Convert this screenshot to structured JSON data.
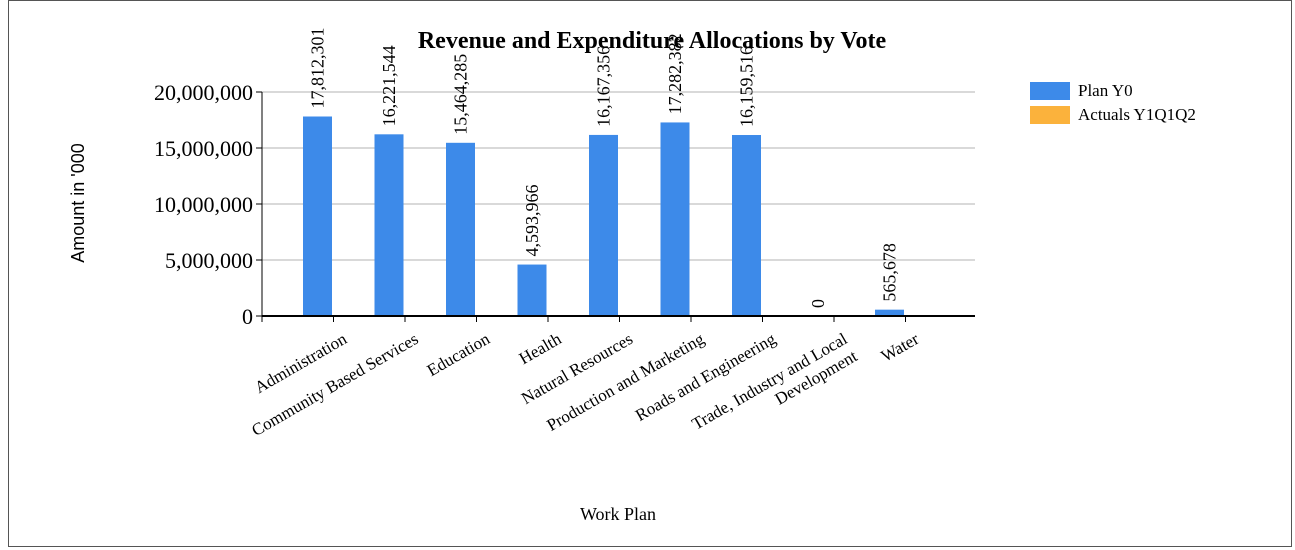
{
  "chart_data": {
    "type": "bar",
    "title": "Revenue and Expenditure Allocations by Vote",
    "xlabel": "Work Plan",
    "ylabel": "Amount in '000",
    "ylim": [
      0,
      20000000
    ],
    "yticks": [
      0,
      5000000,
      10000000,
      15000000,
      20000000
    ],
    "ytick_labels": [
      "0",
      "5,000,000",
      "10,000,000",
      "15,000,000",
      "20,000,000"
    ],
    "grid": true,
    "legend_position": "right",
    "categories": [
      "Administration",
      "Community Based Services",
      "Education",
      "Health",
      "Natural Resources",
      "Production and Marketing",
      "Roads and Engineering",
      "Trade, Industry and Local Development",
      "Water"
    ],
    "category_label_lines": [
      [
        "Administration"
      ],
      [
        "Community Based Services"
      ],
      [
        "Education"
      ],
      [
        "Health"
      ],
      [
        "Natural Resources"
      ],
      [
        "Production and Marketing"
      ],
      [
        "Roads and Engineering"
      ],
      [
        "Trade, Industry and Local",
        "Development"
      ],
      [
        "Water"
      ]
    ],
    "series": [
      {
        "name": "Plan Y0",
        "color": "#3d8ae9",
        "values": [
          17812301,
          16221544,
          15464285,
          4593966,
          16167356,
          17282382,
          16159516,
          0,
          565678
        ],
        "labels": [
          "17,812,301",
          "16,221,544",
          "15,464,285",
          "4,593,966",
          "16,167,356",
          "17,282,382",
          "16,159,516",
          "0",
          "565,678"
        ]
      },
      {
        "name": "Actuals Y1Q1Q2",
        "color": "#fbb23c",
        "values": [
          0,
          0,
          0,
          0,
          0,
          0,
          0,
          0,
          0
        ]
      }
    ]
  }
}
